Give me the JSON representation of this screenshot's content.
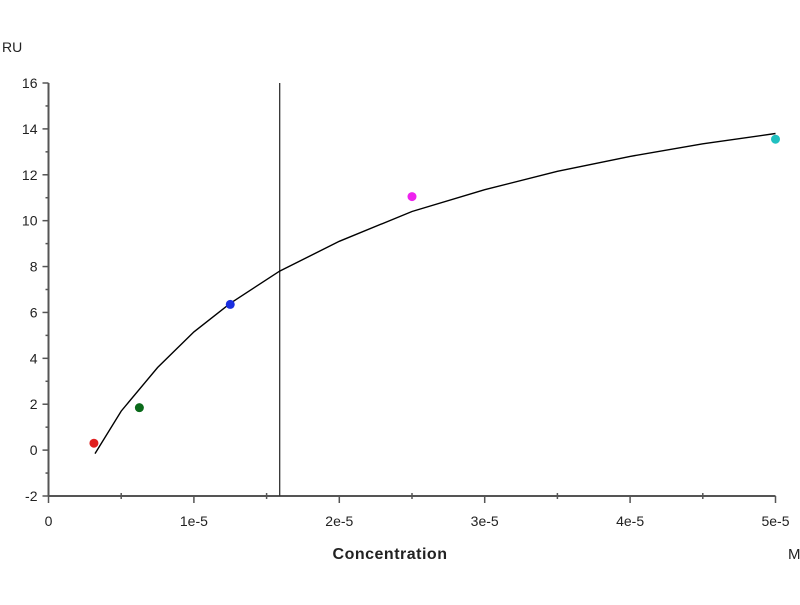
{
  "chart_data": {
    "type": "scatter",
    "title": "",
    "xlabel": "Concentration",
    "x_unit": "M",
    "ylabel": "RU",
    "xlim": [
      0,
      5e-05
    ],
    "ylim": [
      -2,
      16
    ],
    "x_ticks": [
      0,
      1e-05,
      2e-05,
      3e-05,
      4e-05,
      5e-05
    ],
    "x_tick_labels": [
      "0",
      "1e-5",
      "2e-5",
      "3e-5",
      "4e-5",
      "5e-5"
    ],
    "y_ticks": [
      -2,
      0,
      2,
      4,
      6,
      8,
      10,
      12,
      14,
      16
    ],
    "y_tick_labels": [
      "-2",
      "0",
      "2",
      "4",
      "6",
      "8",
      "10",
      "12",
      "14",
      "16"
    ],
    "grid": false,
    "points": [
      {
        "x": 3.125e-06,
        "y": 0.3,
        "color": "#e02020"
      },
      {
        "x": 6.25e-06,
        "y": 1.85,
        "color": "#0a6a1a"
      },
      {
        "x": 1.25e-05,
        "y": 6.35,
        "color": "#1a2ee0"
      },
      {
        "x": 2.5e-05,
        "y": 11.05,
        "color": "#ee22ee"
      },
      {
        "x": 5e-05,
        "y": 13.55,
        "color": "#20c0c0"
      }
    ],
    "fit_curve": {
      "color": "#000000",
      "x": [
        3.2e-06,
        5e-06,
        7.5e-06,
        1e-05,
        1.25e-05,
        1.59e-05,
        2e-05,
        2.5e-05,
        3e-05,
        3.5e-05,
        4e-05,
        4.5e-05,
        5e-05
      ],
      "y": [
        -0.15,
        1.7,
        3.6,
        5.15,
        6.4,
        7.8,
        9.1,
        10.4,
        11.35,
        12.15,
        12.8,
        13.35,
        13.8
      ]
    },
    "vertical_line": {
      "x": 1.59e-05,
      "color": "#333333"
    }
  }
}
